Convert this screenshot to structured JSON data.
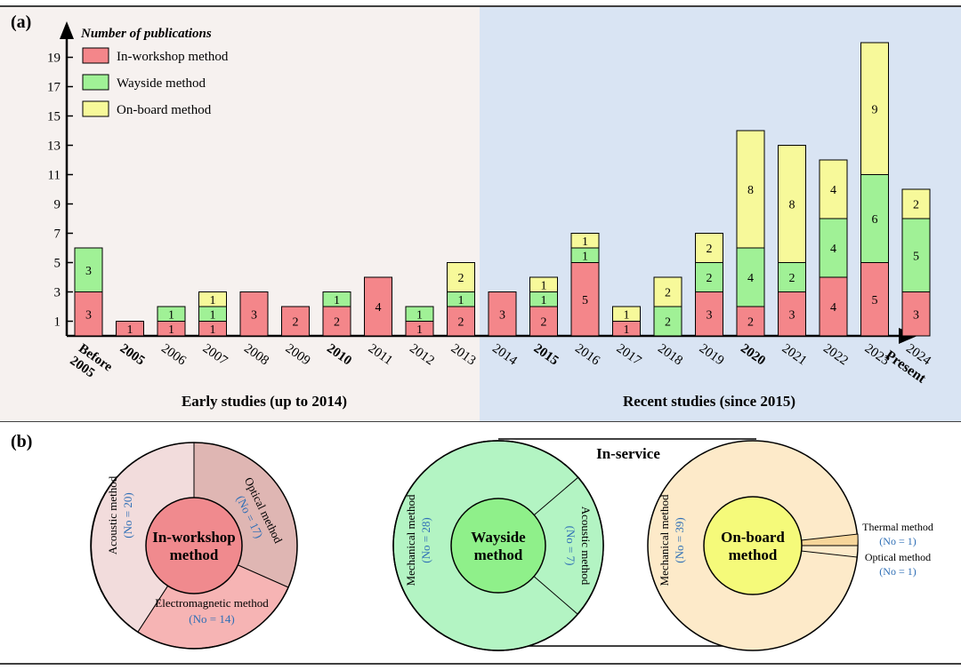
{
  "panel_a": {
    "label": "(a)",
    "y_title": "Number of publications",
    "early_caption": "Early studies (up to 2014)",
    "recent_caption": "Recent studies (since 2015)",
    "end_label": "Present"
  },
  "panel_b": {
    "label": "(b)",
    "in_service_label": "In-service",
    "workshop": {
      "center": [
        "In-workshop",
        "method"
      ],
      "acoustic": {
        "label": "Acoustic  method",
        "count": "(No = 20)"
      },
      "optical": {
        "label": "Optical  method",
        "count": "(No = 17)"
      },
      "electromagnetic": {
        "label": "Electromagnetic method",
        "count": "(No = 14)"
      }
    },
    "wayside": {
      "center": [
        "Wayside",
        "method"
      ],
      "mechanical": {
        "label": "Mechanical method",
        "count": "(No = 28)"
      },
      "acoustic": {
        "label": "Acoustic  method",
        "count": "(No = 7)"
      }
    },
    "onboard": {
      "center": [
        "On-board",
        "method"
      ],
      "mechanical": {
        "label": "Mechanical method",
        "count": "(No = 39)"
      },
      "thermal": {
        "label": "Thermal method",
        "count": "(No = 1)"
      },
      "optical": {
        "label": "Optical  method",
        "count": "(No = 1)"
      }
    }
  },
  "colors": {
    "in_workshop": "#f4868a",
    "wayside": "#a0f196",
    "on_board": "#f7f99a",
    "early_bg": "#f6f1ef",
    "recent_bg": "#d9e4f3",
    "count_text": "#2f6fb6"
  },
  "chart_data": {
    "type": "bar",
    "stacked": true,
    "categories": [
      "Before 2005",
      "2005",
      "2006",
      "2007",
      "2008",
      "2009",
      "2010",
      "2011",
      "2012",
      "2013",
      "2014",
      "2015",
      "2016",
      "2017",
      "2018",
      "2019",
      "2020",
      "2021",
      "2022",
      "2023",
      "2024"
    ],
    "bold_categories": [
      "Before 2005",
      "2005",
      "2010",
      "2015",
      "2020"
    ],
    "series": [
      {
        "name": "In-workshop method",
        "values": [
          3,
          1,
          1,
          1,
          3,
          2,
          2,
          4,
          1,
          2,
          3,
          2,
          5,
          1,
          0,
          3,
          2,
          3,
          4,
          5,
          3
        ]
      },
      {
        "name": "Wayside method",
        "values": [
          3,
          0,
          1,
          1,
          0,
          0,
          1,
          0,
          1,
          1,
          0,
          1,
          1,
          0,
          2,
          2,
          4,
          2,
          4,
          6,
          5
        ]
      },
      {
        "name": "On-board method",
        "values": [
          0,
          0,
          0,
          1,
          0,
          0,
          0,
          0,
          0,
          2,
          0,
          1,
          1,
          1,
          2,
          2,
          8,
          8,
          4,
          9,
          2
        ]
      }
    ],
    "yticks": [
      1,
      3,
      5,
      7,
      9,
      11,
      13,
      15,
      17,
      19
    ],
    "ylim": [
      0,
      21
    ],
    "ylabel": "Number of publications",
    "legend": "top-left"
  }
}
